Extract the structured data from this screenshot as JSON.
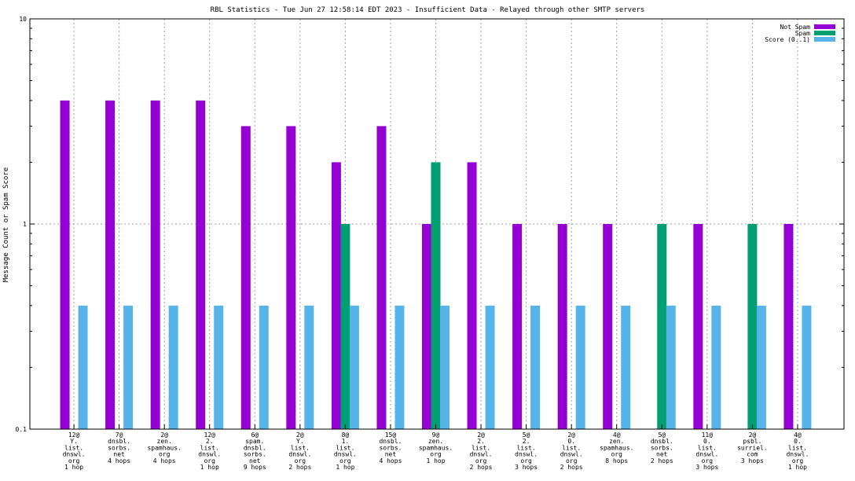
{
  "chart_data": {
    "type": "bar",
    "title": "RBL Statistics - Tue Jun 27 12:58:14 EDT 2023 - Insufficient Data - Relayed through other SMTP servers",
    "ylabel": "Message Count or Spam Score",
    "xlabel": "",
    "yscale": "log",
    "ylim": [
      0.1,
      10
    ],
    "y_ticks": [
      0.1,
      1,
      10
    ],
    "y_tick_labels": [
      "0.1",
      "1",
      "10"
    ],
    "grid": true,
    "legend": "top-right",
    "categories": [
      [
        "12@",
        "Y.",
        "list.",
        "dnswl.",
        "org",
        "1 hop"
      ],
      [
        "7@",
        "dnsbl.",
        "sorbs.",
        "net",
        "4 hops"
      ],
      [
        "2@",
        "zen.",
        "spamhaus.",
        "org",
        "4 hops"
      ],
      [
        "12@",
        "2.",
        "list.",
        "dnswl.",
        "org",
        "1 hop"
      ],
      [
        "6@",
        "spam.",
        "dnsbl.",
        "sorbs.",
        "net",
        "9 hops"
      ],
      [
        "2@",
        "Y.",
        "list.",
        "dnswl.",
        "org",
        "2 hops"
      ],
      [
        "8@",
        "1.",
        "list.",
        "dnswl.",
        "org",
        "1 hop"
      ],
      [
        "15@",
        "dnsbl.",
        "sorbs.",
        "net",
        "4 hops"
      ],
      [
        "9@",
        "zen.",
        "spamhaus.",
        "org",
        "1 hop"
      ],
      [
        "2@",
        "2.",
        "list.",
        "dnswl.",
        "org",
        "2 hops"
      ],
      [
        "5@",
        "2.",
        "list.",
        "dnswl.",
        "org",
        "3 hops"
      ],
      [
        "2@",
        "0.",
        "list.",
        "dnswl.",
        "org",
        "2 hops"
      ],
      [
        "4@",
        "zen.",
        "spamhaus.",
        "org",
        "8 hops"
      ],
      [
        "5@",
        "dnsbl.",
        "sorbs.",
        "net",
        "2 hops"
      ],
      [
        "11@",
        "0.",
        "list.",
        "dnswl.",
        "org",
        "3 hops"
      ],
      [
        "2@",
        "psbl.",
        "surriel.",
        "com",
        "3 hops"
      ],
      [
        "4@",
        "0.",
        "list.",
        "dnswl.",
        "org",
        "1 hop"
      ]
    ],
    "series": [
      {
        "name": "Not Spam",
        "color": "#9400d3",
        "values": [
          4,
          4,
          4,
          4,
          3,
          3,
          2,
          3,
          1,
          2,
          1,
          1,
          1,
          null,
          1,
          null,
          1
        ]
      },
      {
        "name": "Spam",
        "color": "#009e73",
        "values": [
          null,
          null,
          null,
          null,
          null,
          null,
          1,
          null,
          2,
          null,
          null,
          null,
          null,
          1,
          null,
          1,
          null
        ]
      },
      {
        "name": "Score (0..1)",
        "color": "#56b4e9",
        "values": [
          0.4,
          0.4,
          0.4,
          0.4,
          0.4,
          0.4,
          0.4,
          0.4,
          0.4,
          0.4,
          0.4,
          0.4,
          0.4,
          0.4,
          0.4,
          0.4,
          0.4
        ]
      }
    ]
  }
}
